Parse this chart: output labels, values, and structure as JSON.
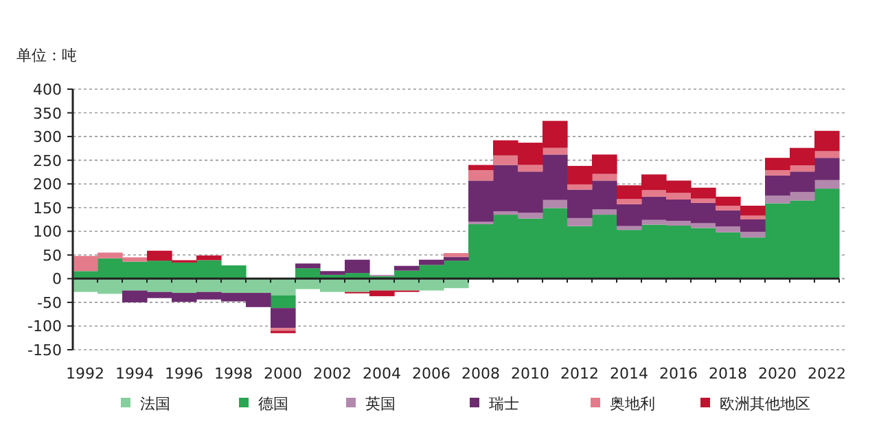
{
  "chart_data": {
    "type": "bar",
    "stacked": true,
    "ylabel": "单位：吨",
    "categories": [
      "1992",
      null,
      "1994",
      null,
      "1996",
      null,
      "1998",
      null,
      "2000",
      null,
      "2002",
      null,
      "2004",
      null,
      "2006",
      null,
      "2008",
      null,
      "2010",
      null,
      "2012",
      null,
      "2014",
      null,
      "2016",
      null,
      "2018",
      null,
      "2020",
      null,
      "2022"
    ],
    "series": [
      {
        "name": "法国",
        "color": "#86cf9c",
        "values": [
          -28,
          -32,
          -25,
          -28,
          -30,
          -28,
          -30,
          -30,
          -35,
          -22,
          -28,
          -28,
          -25,
          -25,
          -25,
          -20,
          0,
          0,
          0,
          0,
          0,
          0,
          0,
          0,
          0,
          0,
          0,
          0,
          0,
          0,
          0
        ]
      },
      {
        "name": "德国",
        "color": "#2aa552",
        "values": [
          16,
          43,
          36,
          38,
          34,
          39,
          28,
          0,
          -27,
          22,
          8,
          12,
          5,
          17,
          29,
          38,
          115,
          135,
          127,
          149,
          111,
          135,
          103,
          114,
          112,
          107,
          98,
          87,
          159,
          165,
          190
        ]
      },
      {
        "name": "英国",
        "color": "#b388ad",
        "values": [
          0,
          0,
          0,
          0,
          0,
          0,
          0,
          0,
          0,
          0,
          0,
          0,
          3,
          0,
          0,
          0,
          5,
          7,
          12,
          17,
          17,
          11,
          8,
          10,
          10,
          10,
          12,
          12,
          16,
          18,
          18
        ]
      },
      {
        "name": "瑞士",
        "color": "#6d2b6f",
        "values": [
          0,
          0,
          -25,
          -13,
          -19,
          -16,
          -18,
          -30,
          -42,
          10,
          8,
          28,
          0,
          10,
          11,
          8,
          87,
          98,
          87,
          96,
          60,
          61,
          46,
          49,
          45,
          43,
          34,
          26,
          43,
          43,
          47
        ]
      },
      {
        "name": "奥地利",
        "color": "#e47b8b",
        "values": [
          32,
          12,
          9,
          0,
          0,
          0,
          0,
          0,
          -6,
          0,
          0,
          0,
          0,
          0,
          0,
          8,
          22,
          20,
          14,
          14,
          11,
          14,
          11,
          14,
          14,
          9,
          10,
          8,
          11,
          13,
          14
        ]
      },
      {
        "name": "欧洲其他地区",
        "color": "#c1122f",
        "values": [
          0,
          0,
          0,
          21,
          5,
          10,
          0,
          0,
          -5,
          0,
          0,
          -3,
          -12,
          -3,
          0,
          0,
          11,
          32,
          47,
          57,
          39,
          41,
          29,
          33,
          26,
          23,
          19,
          21,
          26,
          37,
          43
        ]
      }
    ],
    "ylim": [
      -150,
      400
    ],
    "yticks": [
      -150,
      -100,
      -50,
      0,
      50,
      100,
      150,
      200,
      250,
      300,
      350,
      400
    ],
    "grid": "y",
    "legend": "bottom"
  }
}
